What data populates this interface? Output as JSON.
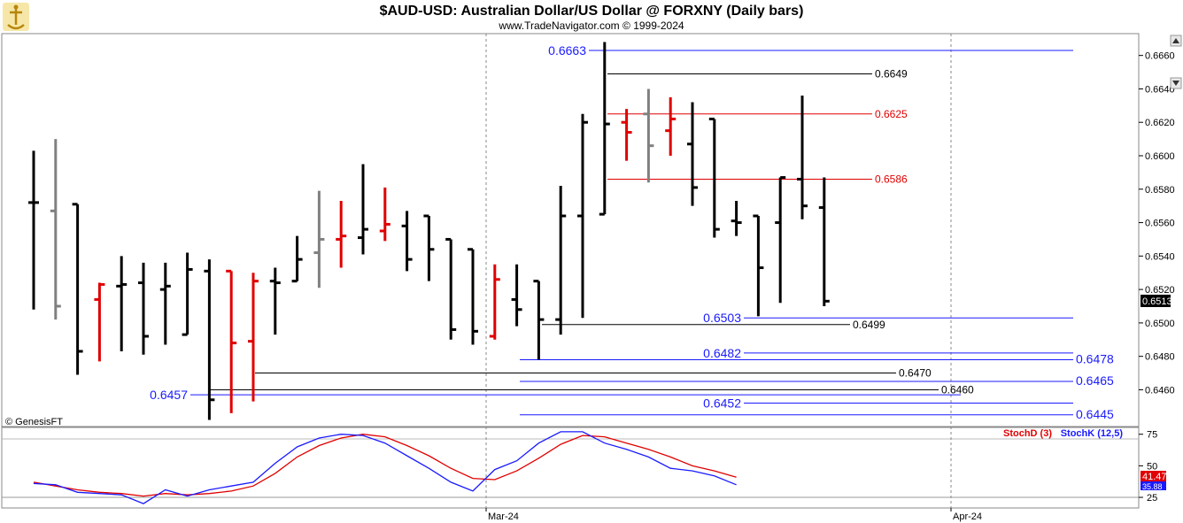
{
  "header": {
    "title": "$AUD-USD:  Australian Dollar/US Dollar @ FORXNY  (Daily bars)",
    "subtitle": "www.TradeNavigator.com © 1999-2024",
    "watermark": "© GenesisFT"
  },
  "colors": {
    "up_bar": "#000000",
    "down_bar": "#e00000",
    "neutral_bar": "#808080",
    "support_line": "#1a1aff",
    "resistance_line": "#e00000",
    "stoch_d": "#e00000",
    "stoch_k": "#1a1aff"
  },
  "chart_data": {
    "type": "ohlc",
    "price_axis": {
      "ylim": [
        0.6438,
        0.6672
      ],
      "ticks": [
        "0.6660",
        "0.6640",
        "0.6620",
        "0.6600",
        "0.6580",
        "0.6560",
        "0.6540",
        "0.6520",
        "0.6500",
        "0.6480",
        "0.6460"
      ],
      "last_price": "0.6513"
    },
    "x_axis": {
      "labels": [
        "Mar-24",
        "Apr-24"
      ]
    },
    "bars": [
      {
        "o": 0.6572,
        "h": 0.6603,
        "l": 0.6508,
        "c": 0.6572,
        "col": "black"
      },
      {
        "o": 0.6567,
        "h": 0.661,
        "l": 0.6502,
        "c": 0.651,
        "col": "gray"
      },
      {
        "o": 0.6571,
        "h": 0.6571,
        "l": 0.6469,
        "c": 0.6483,
        "col": "black"
      },
      {
        "o": 0.6514,
        "h": 0.6524,
        "l": 0.6477,
        "c": 0.6523,
        "col": "red"
      },
      {
        "o": 0.6522,
        "h": 0.654,
        "l": 0.6483,
        "c": 0.6523,
        "col": "black"
      },
      {
        "o": 0.6524,
        "h": 0.6536,
        "l": 0.6481,
        "c": 0.6492,
        "col": "black"
      },
      {
        "o": 0.652,
        "h": 0.6536,
        "l": 0.6487,
        "c": 0.6522,
        "col": "black"
      },
      {
        "o": 0.6493,
        "h": 0.6542,
        "l": 0.6493,
        "c": 0.6532,
        "col": "black"
      },
      {
        "o": 0.6531,
        "h": 0.6538,
        "l": 0.6442,
        "c": 0.6454,
        "col": "black"
      },
      {
        "o": 0.6531,
        "h": 0.6531,
        "l": 0.6446,
        "c": 0.6488,
        "col": "red"
      },
      {
        "o": 0.6489,
        "h": 0.653,
        "l": 0.6453,
        "c": 0.6525,
        "col": "red"
      },
      {
        "o": 0.6525,
        "h": 0.6533,
        "l": 0.6493,
        "c": 0.6524,
        "col": "black"
      },
      {
        "o": 0.6525,
        "h": 0.6552,
        "l": 0.6525,
        "c": 0.6538,
        "col": "black"
      },
      {
        "o": 0.6542,
        "h": 0.6579,
        "l": 0.6521,
        "c": 0.655,
        "col": "gray"
      },
      {
        "o": 0.655,
        "h": 0.6573,
        "l": 0.6533,
        "c": 0.6552,
        "col": "red"
      },
      {
        "o": 0.6551,
        "h": 0.6595,
        "l": 0.6541,
        "c": 0.6556,
        "col": "black"
      },
      {
        "o": 0.6555,
        "h": 0.6581,
        "l": 0.6549,
        "c": 0.6559,
        "col": "red"
      },
      {
        "o": 0.6558,
        "h": 0.6567,
        "l": 0.6531,
        "c": 0.6538,
        "col": "black"
      },
      {
        "o": 0.6564,
        "h": 0.6564,
        "l": 0.6525,
        "c": 0.6544,
        "col": "black"
      },
      {
        "o": 0.655,
        "h": 0.655,
        "l": 0.649,
        "c": 0.6496,
        "col": "black"
      },
      {
        "o": 0.6544,
        "h": 0.6544,
        "l": 0.6487,
        "c": 0.6495,
        "col": "black"
      },
      {
        "o": 0.6492,
        "h": 0.6535,
        "l": 0.649,
        "c": 0.6526,
        "col": "red"
      },
      {
        "o": 0.6514,
        "h": 0.6535,
        "l": 0.6498,
        "c": 0.6508,
        "col": "black"
      },
      {
        "o": 0.6525,
        "h": 0.6525,
        "l": 0.6478,
        "c": 0.6502,
        "col": "black"
      },
      {
        "o": 0.6502,
        "h": 0.6582,
        "l": 0.6493,
        "c": 0.6564,
        "col": "black"
      },
      {
        "o": 0.6564,
        "h": 0.6625,
        "l": 0.6503,
        "c": 0.662,
        "col": "black"
      },
      {
        "o": 0.6565,
        "h": 0.6668,
        "l": 0.6565,
        "c": 0.6619,
        "col": "black"
      },
      {
        "o": 0.662,
        "h": 0.6628,
        "l": 0.6597,
        "c": 0.6614,
        "col": "red"
      },
      {
        "o": 0.6625,
        "h": 0.664,
        "l": 0.6584,
        "c": 0.6606,
        "col": "gray"
      },
      {
        "o": 0.6615,
        "h": 0.6635,
        "l": 0.66,
        "c": 0.6622,
        "col": "red"
      },
      {
        "o": 0.6607,
        "h": 0.6632,
        "l": 0.657,
        "c": 0.6581,
        "col": "black"
      },
      {
        "o": 0.6622,
        "h": 0.6622,
        "l": 0.6551,
        "c": 0.6556,
        "col": "black"
      },
      {
        "o": 0.6561,
        "h": 0.6573,
        "l": 0.6552,
        "c": 0.656,
        "col": "black"
      },
      {
        "o": 0.6564,
        "h": 0.6564,
        "l": 0.6504,
        "c": 0.6533,
        "col": "black"
      },
      {
        "o": 0.656,
        "h": 0.6587,
        "l": 0.6512,
        "c": 0.6587,
        "col": "black"
      },
      {
        "o": 0.6586,
        "h": 0.6636,
        "l": 0.6562,
        "c": 0.657,
        "col": "black"
      },
      {
        "o": 0.6569,
        "h": 0.6587,
        "l": 0.651,
        "c": 0.6513,
        "col": "black"
      }
    ],
    "levels": [
      {
        "value": "0.6663",
        "price": 0.6663,
        "color": "blue",
        "x_from": 0.47,
        "label": "0.6663",
        "label_side": "left"
      },
      {
        "value": "0.6649",
        "price": 0.6649,
        "color": "black",
        "x_from": 0.52,
        "label": "0.6649",
        "label_side": "right"
      },
      {
        "value": "0.6625",
        "price": 0.6625,
        "color": "red",
        "x_from": 0.52,
        "label": "0.6625",
        "label_side": "right"
      },
      {
        "value": "0.6586",
        "price": 0.6586,
        "color": "red",
        "x_from": 0.52,
        "label": "0.6586",
        "label_side": "right"
      },
      {
        "value": "0.6503",
        "price": 0.6503,
        "color": "blue",
        "x_from": 0.66,
        "label": "0.6503",
        "label_side": "left"
      },
      {
        "value": "0.6499",
        "price": 0.6499,
        "color": "black",
        "x_from": 0.46,
        "label": "0.6499",
        "label_side": "right"
      },
      {
        "value": "0.6482",
        "price": 0.6482,
        "color": "blue",
        "x_from": 0.66,
        "label": "0.6482",
        "label_side": "left"
      },
      {
        "value": "0.6478",
        "price": 0.6478,
        "color": "blue",
        "x_from": 0.44,
        "label": "0.6478",
        "label_side": "right"
      },
      {
        "value": "0.6470",
        "price": 0.647,
        "color": "black",
        "x_from": 0.21,
        "label": "0.6470",
        "label_side": "right"
      },
      {
        "value": "0.6465",
        "price": 0.6465,
        "color": "blue",
        "x_from": 0.44,
        "label": "0.6465",
        "label_side": "right"
      },
      {
        "value": "0.6460",
        "price": 0.646,
        "color": "black",
        "x_from": 0.18,
        "label": "0.6460",
        "label_side": "right"
      },
      {
        "value": "0.6457",
        "price": 0.6457,
        "color": "blue",
        "x_from": 0.18,
        "label": "0.6457",
        "label_side": "left"
      },
      {
        "value": "0.6452",
        "price": 0.6452,
        "color": "blue",
        "x_from": 0.66,
        "label": "0.6452",
        "label_side": "left"
      },
      {
        "value": "0.6445",
        "price": 0.6445,
        "color": "blue",
        "x_from": 0.44,
        "label": "0.6445",
        "label_side": "right"
      }
    ],
    "stochastic": {
      "legend_d": "StochD (3)",
      "legend_k": "StochK (12,5)",
      "ylim": [
        18,
        79
      ],
      "ticks": [
        "75",
        "50",
        "25"
      ],
      "last_d": "41.47",
      "last_k": "35.88",
      "k": [
        36,
        35,
        29,
        28,
        27,
        20,
        31,
        26,
        31,
        34,
        37,
        52,
        65,
        72,
        75,
        74,
        68,
        58,
        48,
        37,
        30,
        47,
        54,
        68,
        77,
        77,
        68,
        63,
        57,
        48,
        46,
        42,
        35
      ],
      "d": [
        37,
        34,
        31,
        29,
        28,
        26,
        28,
        27,
        28,
        30,
        34,
        44,
        57,
        66,
        72,
        75,
        73,
        66,
        58,
        48,
        40,
        39,
        46,
        56,
        67,
        74,
        73,
        68,
        63,
        57,
        50,
        46,
        41
      ]
    }
  }
}
